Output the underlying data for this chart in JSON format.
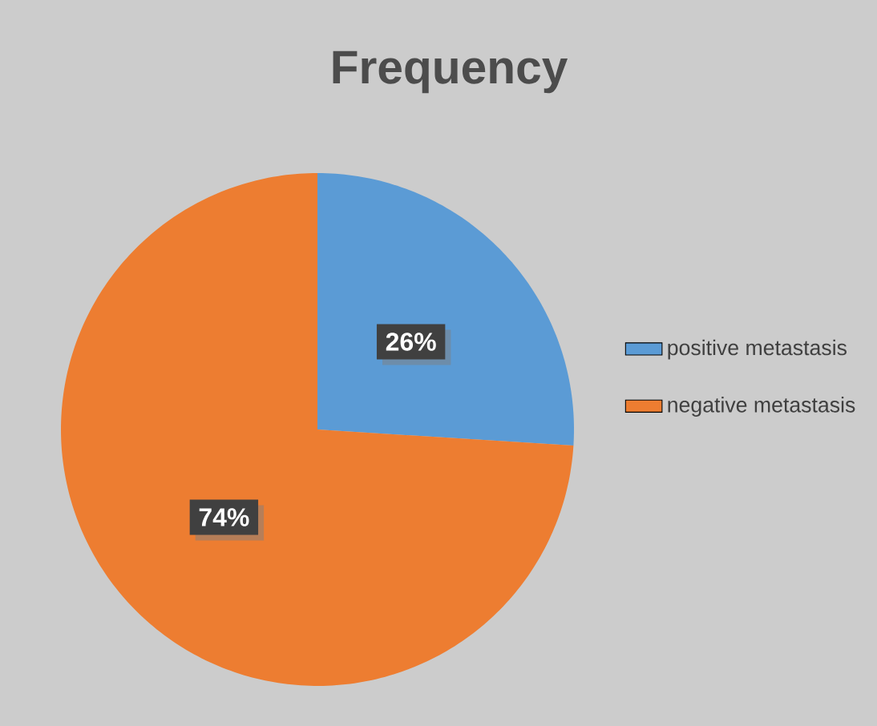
{
  "chart_data": {
    "type": "pie",
    "title": "Frequency",
    "categories": [
      "positive metastasis",
      "negative metastasis"
    ],
    "values": [
      26,
      74
    ],
    "value_labels": [
      "26%",
      "74%"
    ],
    "colors": [
      "#5b9bd5",
      "#ed7d31"
    ],
    "legend": "right"
  }
}
